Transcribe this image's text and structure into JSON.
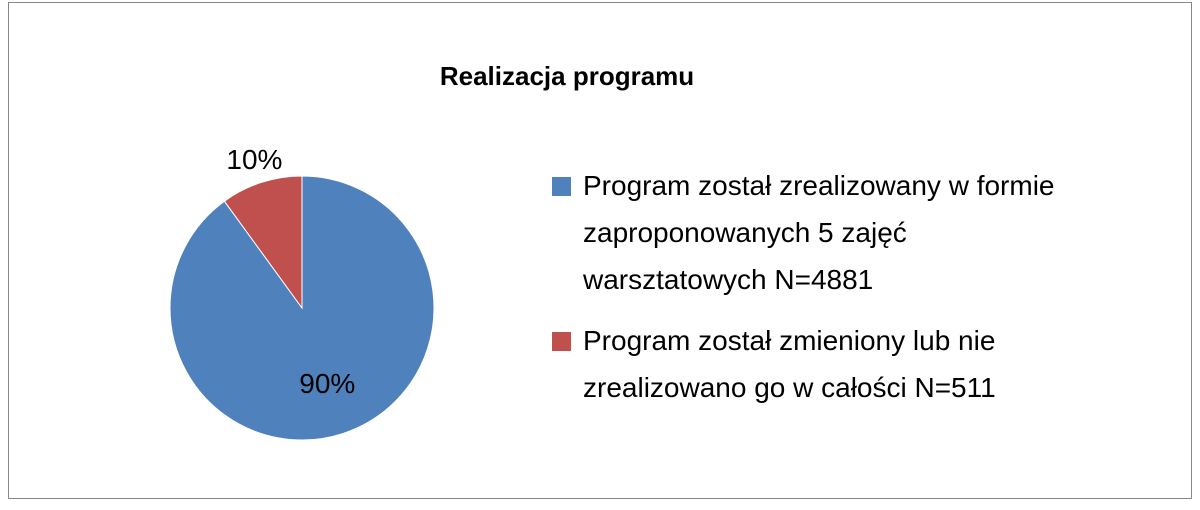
{
  "chart_data": {
    "type": "pie",
    "title": "Realizacja programu",
    "categories": [
      "Program został zrealizowany w formie zaproponowanych 5 zajęć warsztatowych N=4881",
      "Program został zmieniony lub nie zrealizowano go w całości N=511"
    ],
    "values": [
      90,
      10
    ],
    "value_labels": [
      "90%",
      "10%"
    ],
    "colors": [
      "#4f81bd",
      "#c0504d"
    ],
    "legend": "right"
  }
}
